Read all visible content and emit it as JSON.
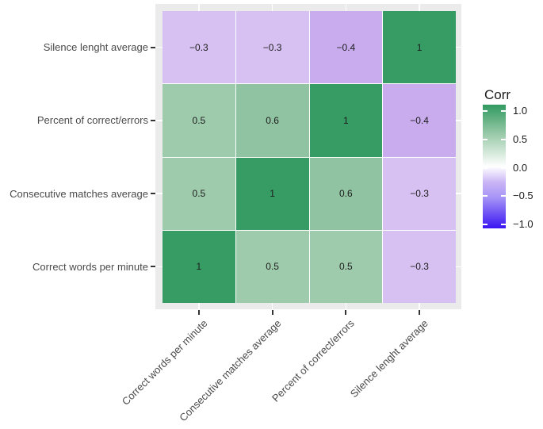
{
  "figure": {
    "background": "#ffffff",
    "panel_background": "#ebebeb",
    "tile_border_color": "#ffffff",
    "axis_text_color": "#4a4a4a",
    "cell_text_color": "#1c1c1c",
    "tick_color": "#333333"
  },
  "chart_data": {
    "type": "heatmap",
    "title": "",
    "x_categories": [
      "Correct words per minute",
      "Consecutive matches average",
      "Percent of correct/errors",
      "Silence lenght average"
    ],
    "y_categories_top_to_bottom": [
      "Silence lenght average",
      "Percent of correct/errors",
      "Consecutive matches average",
      "Correct words per minute"
    ],
    "matrix_rows_top_to_bottom": [
      [
        -0.3,
        -0.3,
        -0.4,
        1
      ],
      [
        0.5,
        0.6,
        1,
        -0.4
      ],
      [
        0.5,
        1,
        0.6,
        -0.3
      ],
      [
        1,
        0.5,
        0.5,
        -0.3
      ]
    ],
    "cell_labels_rows_top_to_bottom": [
      [
        "−0.3",
        "−0.3",
        "−0.4",
        "1"
      ],
      [
        "0.5",
        "0.6",
        "1",
        "−0.4"
      ],
      [
        "0.5",
        "1",
        "0.6",
        "−0.3"
      ],
      [
        "1",
        "0.5",
        "0.5",
        "−0.3"
      ]
    ],
    "value_range": [
      -1,
      1
    ],
    "legend": {
      "title": "Corr",
      "tick_labels": [
        "1.0",
        "0.5",
        "0.0",
        "−0.5",
        "−1.0"
      ],
      "tick_values": [
        1,
        0.5,
        0,
        -0.5,
        -1
      ],
      "position": "right"
    },
    "colorscale_stops": [
      {
        "pos": 0,
        "color": "#319a60"
      },
      {
        "pos": 0.25,
        "color": "#9fccad"
      },
      {
        "pos": 0.5,
        "color": "#ffffff"
      },
      {
        "pos": 0.63,
        "color": "#c9b4f5"
      },
      {
        "pos": 0.75,
        "color": "#a795f7"
      },
      {
        "pos": 1,
        "color": "#3a14f2"
      }
    ],
    "value_colors": {
      "1": "#369c64",
      "0.6": "#8fc3a1",
      "0.5": "#9fcbad",
      "-0.3": "#d7c0f2",
      "-0.4": "#c9acee"
    }
  }
}
